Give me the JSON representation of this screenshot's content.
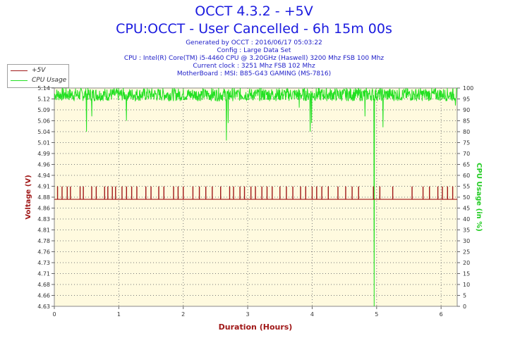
{
  "header": {
    "title": "OCCT 4.3.2 - +5V",
    "subtitle": "CPU:OCCT - User Cancelled - 6h 15m 00s",
    "info_lines": [
      "Generated by OCCT : 2016/06/17 05:03:22",
      "Config : Large Data Set",
      "CPU : Intel(R) Core(TM) i5-4460 CPU @ 3.20GHz (Haswell) 3200 Mhz FSB 100 Mhz",
      "Current clock : 3251 Mhz FSB 102 Mhz",
      "MotherBoard : MSI: B85-G43 GAMING (MS-7816)"
    ]
  },
  "colors": {
    "voltage": "#a01818",
    "cpu": "#22e022",
    "plot_bg": "#fffadf",
    "title": "#1a1adf"
  },
  "chart_data": {
    "type": "line",
    "title": "OCCT 4.3.2 - +5V",
    "xlabel": "Duration (Hours)",
    "ylabel": "Voltage (V)",
    "y2label": "CPU Usage (in %)",
    "xlim": [
      0,
      6.25
    ],
    "ylim": [
      4.63,
      5.14
    ],
    "y2lim": [
      0,
      100
    ],
    "x_ticks": [
      "0",
      "1",
      "2",
      "3",
      "4",
      "5",
      "6"
    ],
    "y_ticks": [
      "4.63",
      "4.66",
      "4.68",
      "4.71",
      "4.73",
      "4.76",
      "4.78",
      "4.81",
      "4.83",
      "4.86",
      "4.88",
      "4.91",
      "4.94",
      "4.96",
      "4.99",
      "5.01",
      "5.04",
      "5.06",
      "5.09",
      "5.12",
      "5.14"
    ],
    "y2_ticks": [
      "0",
      "5",
      "10",
      "15",
      "20",
      "25",
      "30",
      "35",
      "40",
      "45",
      "50",
      "55",
      "60",
      "65",
      "70",
      "75",
      "80",
      "85",
      "90",
      "95",
      "100"
    ],
    "grid": true,
    "legend_position": "top-left",
    "series": [
      {
        "name": "+5V",
        "axis": "left",
        "baseline": 4.88,
        "alternate": 4.91,
        "x": [
          0.05,
          0.12,
          0.2,
          0.25,
          0.4,
          0.45,
          0.58,
          0.65,
          0.78,
          0.83,
          0.9,
          0.95,
          1.05,
          1.12,
          1.2,
          1.28,
          1.42,
          1.5,
          1.62,
          1.7,
          1.85,
          1.92,
          2.0,
          2.15,
          2.25,
          2.35,
          2.45,
          2.58,
          2.72,
          2.78,
          2.88,
          2.95,
          3.05,
          3.12,
          3.22,
          3.3,
          3.38,
          3.5,
          3.6,
          3.7,
          3.82,
          3.9,
          4.0,
          4.07,
          4.15,
          4.25,
          4.4,
          4.52,
          4.62,
          4.72,
          4.95,
          5.05,
          5.25,
          5.55,
          5.72,
          5.82,
          5.95,
          6.02,
          6.1,
          6.18
        ]
      },
      {
        "name": "CPU Usage",
        "axis": "right",
        "baseline_range": [
          94,
          100
        ],
        "dips": [
          {
            "x": 0.5,
            "value": 80
          },
          {
            "x": 0.58,
            "value": 87
          },
          {
            "x": 1.12,
            "value": 85
          },
          {
            "x": 2.67,
            "value": 76
          },
          {
            "x": 2.7,
            "value": 84
          },
          {
            "x": 3.8,
            "value": 91
          },
          {
            "x": 3.97,
            "value": 80
          },
          {
            "x": 3.99,
            "value": 84
          },
          {
            "x": 4.82,
            "value": 87
          },
          {
            "x": 4.96,
            "value": 0
          },
          {
            "x": 5.1,
            "value": 82
          },
          {
            "x": 6.22,
            "value": 92
          }
        ]
      }
    ]
  }
}
